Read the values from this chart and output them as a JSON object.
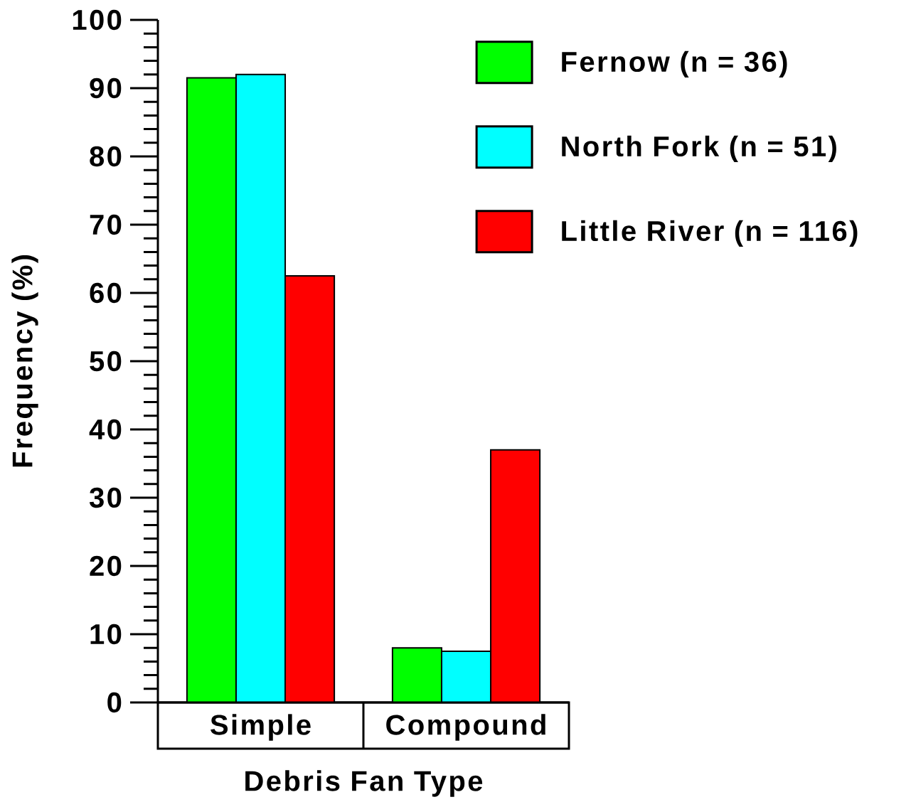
{
  "chart_data": {
    "type": "bar",
    "xlabel": "Debris Fan Type",
    "ylabel": "Frequency (%)",
    "categories": [
      "Simple",
      "Compound"
    ],
    "series": [
      {
        "name": "Fernow (n = 36)",
        "color": "#00ff00",
        "values": [
          91.5,
          8
        ]
      },
      {
        "name": "North Fork (n = 51)",
        "color": "#00ffff",
        "values": [
          92,
          7.5
        ]
      },
      {
        "name": "Little River (n = 116)",
        "color": "#ff0000",
        "values": [
          62.5,
          37
        ]
      }
    ],
    "ylim": [
      0,
      100
    ],
    "yticks": [
      0,
      10,
      20,
      30,
      40,
      50,
      60,
      70,
      80,
      90,
      100
    ],
    "legend": "top right"
  }
}
